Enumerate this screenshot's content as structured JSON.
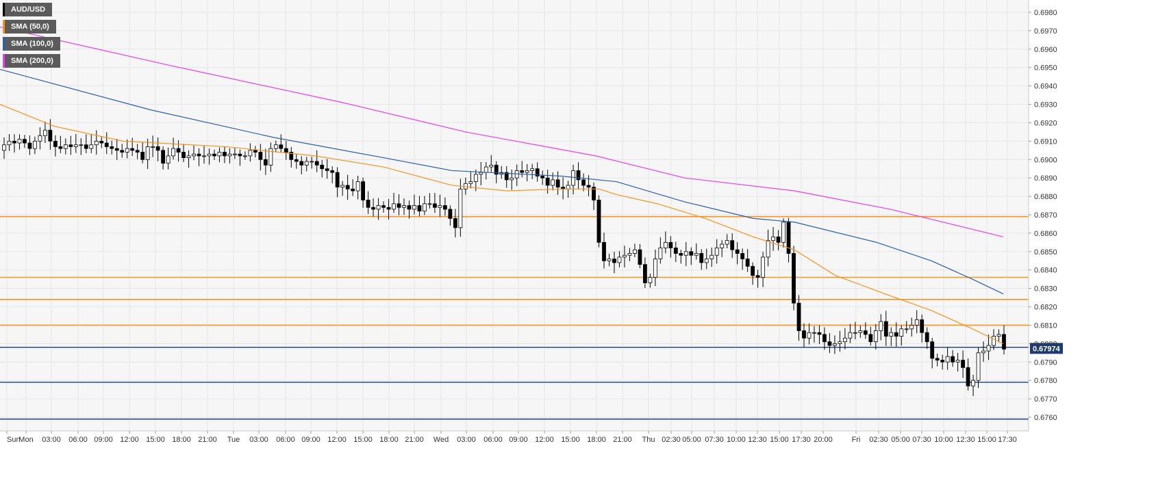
{
  "chart_data": {
    "type": "candlestick",
    "instrument": "AUD/USD",
    "last_price": "0.67974",
    "legend": [
      {
        "label": "AUD/USD",
        "color": "#000000"
      },
      {
        "label": "SMA (50,0)",
        "color": "#f7931e"
      },
      {
        "label": "SMA (100,0)",
        "color": "#2a5db0"
      },
      {
        "label": "SMA (200,0)",
        "color": "#e83ee8"
      }
    ],
    "y_ticks": [
      "0.6980",
      "0.6970",
      "0.6960",
      "0.6950",
      "0.6940",
      "0.6930",
      "0.6920",
      "0.6910",
      "0.6900",
      "0.6890",
      "0.6880",
      "0.6870",
      "0.6860",
      "0.6850",
      "0.6840",
      "0.6830",
      "0.6820",
      "0.6810",
      "0.6800",
      "0.6790",
      "0.6780",
      "0.6770",
      "0.6760"
    ],
    "ylim": [
      0.6755,
      0.6986
    ],
    "x_ticks": [
      "Sun",
      "Mon",
      "03:00",
      "06:00",
      "09:00",
      "12:00",
      "15:00",
      "18:00",
      "21:00",
      "Tue",
      "03:00",
      "06:00",
      "09:00",
      "12:00",
      "15:00",
      "18:00",
      "21:00",
      "Wed",
      "03:00",
      "06:00",
      "09:00",
      "12:00",
      "15:00",
      "18:00",
      "21:00",
      "Thu",
      "02:30",
      "05:00",
      "07:30",
      "10:00",
      "12:30",
      "15:00",
      "17:30",
      "20:00",
      "Fri",
      "02:30",
      "05:00",
      "07:30",
      "10:00",
      "12:30",
      "15:00",
      "17:30"
    ],
    "horizontal_levels": [
      {
        "value": 0.6869,
        "color": "#f7931e"
      },
      {
        "value": 0.6836,
        "color": "#f7931e"
      },
      {
        "value": 0.6824,
        "color": "#f7931e"
      },
      {
        "value": 0.681,
        "color": "#f7931e"
      },
      {
        "value": 0.6798,
        "color": "#2a4a8a"
      },
      {
        "value": 0.6779,
        "color": "#2a4a8a"
      },
      {
        "value": 0.6759,
        "color": "#2a4a8a"
      }
    ],
    "close_series": [
      0.6908,
      0.691,
      0.6909,
      0.6911,
      0.6909,
      0.6906,
      0.691,
      0.6913,
      0.6916,
      0.691,
      0.6907,
      0.6906,
      0.6908,
      0.6907,
      0.6908,
      0.6908,
      0.6906,
      0.6908,
      0.691,
      0.6909,
      0.6907,
      0.6906,
      0.6905,
      0.6904,
      0.6906,
      0.6905,
      0.6904,
      0.69,
      0.6907,
      0.6907,
      0.6905,
      0.6898,
      0.6902,
      0.6906,
      0.6904,
      0.6901,
      0.6902,
      0.6903,
      0.6902,
      0.6902,
      0.6903,
      0.6902,
      0.6904,
      0.6902,
      0.6903,
      0.6903,
      0.6902,
      0.6902,
      0.6905,
      0.6904,
      0.69,
      0.6897,
      0.6906,
      0.6908,
      0.6906,
      0.6904,
      0.69,
      0.6899,
      0.6897,
      0.6899,
      0.6899,
      0.6897,
      0.6895,
      0.6894,
      0.6893,
      0.6885,
      0.6886,
      0.6884,
      0.6883,
      0.6888,
      0.6878,
      0.6874,
      0.6873,
      0.6875,
      0.6874,
      0.6873,
      0.6876,
      0.6874,
      0.6875,
      0.6873,
      0.6875,
      0.6872,
      0.6876,
      0.6876,
      0.6874,
      0.6875,
      0.6873,
      0.6868,
      0.6863,
      0.6884,
      0.6887,
      0.6888,
      0.6892,
      0.6893,
      0.6896,
      0.6897,
      0.6892,
      0.6893,
      0.6889,
      0.689,
      0.6894,
      0.6893,
      0.6894,
      0.6895,
      0.6891,
      0.689,
      0.6886,
      0.6889,
      0.6885,
      0.6884,
      0.6886,
      0.6894,
      0.6889,
      0.6886,
      0.6885,
      0.6878,
      0.6855,
      0.6845,
      0.6846,
      0.6844,
      0.6847,
      0.6848,
      0.6849,
      0.6851,
      0.6843,
      0.6833,
      0.6836,
      0.6846,
      0.6852,
      0.6855,
      0.6852,
      0.6849,
      0.6848,
      0.685,
      0.6848,
      0.6849,
      0.6844,
      0.6846,
      0.6848,
      0.6852,
      0.6854,
      0.6856,
      0.6851,
      0.6849,
      0.6846,
      0.6842,
      0.6837,
      0.6836,
      0.6847,
      0.6856,
      0.6858,
      0.6855,
      0.6866,
      0.6849,
      0.6822,
      0.6807,
      0.6803,
      0.6806,
      0.6806,
      0.6805,
      0.6801,
      0.6799,
      0.68,
      0.6801,
      0.6803,
      0.6806,
      0.6806,
      0.6807,
      0.6805,
      0.6801,
      0.6807,
      0.6812,
      0.6804,
      0.6806,
      0.6804,
      0.6808,
      0.6808,
      0.681,
      0.6813,
      0.6806,
      0.6801,
      0.6792,
      0.6791,
      0.679,
      0.6793,
      0.679,
      0.6791,
      0.6787,
      0.6777,
      0.678,
      0.6795,
      0.6796,
      0.6799,
      0.6804,
      0.6805,
      0.6797
    ]
  }
}
